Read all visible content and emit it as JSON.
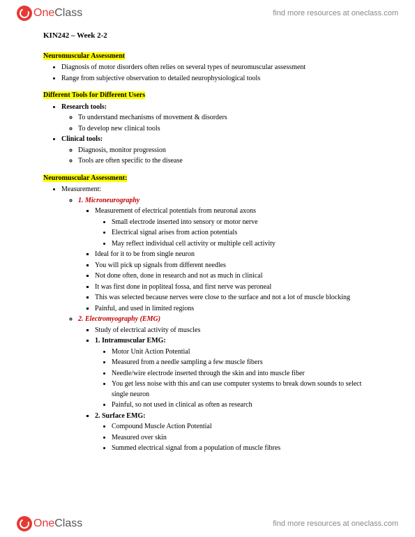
{
  "brand": {
    "one": "One",
    "class": "Class"
  },
  "header_link": "find more resources at oneclass.com",
  "footer_link": "find more resources at oneclass.com",
  "title": "KIN242 – Week 2-2",
  "s1": {
    "heading": "Neuromuscular Assessment",
    "b1": "Diagnosis of motor disorders often relies on several types of neuromuscular assessment",
    "b2": "Range from subjective observation to detailed neurophysiological tools"
  },
  "s2": {
    "heading": "Different Tools for Different Users",
    "b1": "Research tools:",
    "b1a": "To understand mechanisms of movement & disorders",
    "b1b": "To develop new clinical tools",
    "b2": "Clinical tools:",
    "b2a": "Diagnosis, monitor progression",
    "b2b": "Tools are often specific to the disease"
  },
  "s3": {
    "heading": "Neuromuscular Assessment:",
    "b1": "Measurement:",
    "m1": "1. Microneurography",
    "m1a": "Measurement of electrical potentials from neuronal axons",
    "m1a1": "Small electrode inserted into sensory or motor nerve",
    "m1a2": "Electrical signal arises from action potentials",
    "m1a3": "May reflect individual cell activity or multiple cell activity",
    "m1b": "Ideal for it to be from single neuron",
    "m1c": "You will pick up signals from different needles",
    "m1d": "Not done often, done in research and not as much in clinical",
    "m1e": "It was first done in popliteal fossa, and first nerve was peroneal",
    "m1f": "This was selected because nerves were close to the surface and not a lot of muscle blocking",
    "m1g": "Painful, and used in limited regions",
    "m2": "2. Electromyography  (EMG)",
    "m2a": "Study of electrical activity of muscles",
    "m2b": "1. Intramuscular EMG:",
    "m2b1": "Motor Unit Action Potential",
    "m2b2": "Measured from a needle sampling a few muscle fibers",
    "m2b3": "Needle/wire electrode inserted through the skin and into muscle fiber",
    "m2b4": "You get less noise with this and can use computer systems to break down sounds to select single neuron",
    "m2b5": "Painful, so not used in clinical as often as research",
    "m2c": "2. Surface EMG:",
    "m2c1": "Compound Muscle Action Potential",
    "m2c2": "Measured over skin",
    "m2c3": "Summed electrical signal from a population of muscle fibres"
  }
}
